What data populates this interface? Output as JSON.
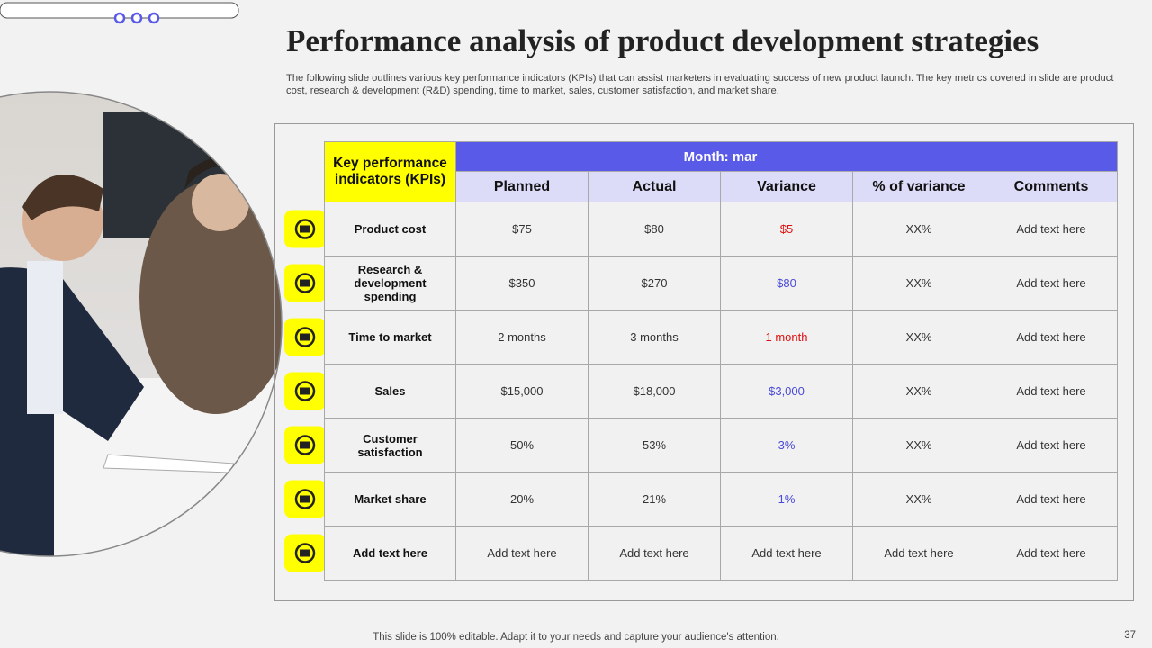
{
  "title": "Performance analysis of product development strategies",
  "subtitle": "The following slide outlines various key performance indicators (KPIs) that can assist marketers in evaluating success of new product launch. The key metrics covered in slide are product cost, research & development (R&D) spending, time to market, sales, customer satisfaction, and market share.",
  "table": {
    "kpi_header": "Key performance indicators (KPIs)",
    "group_header": "Month: mar",
    "columns": [
      "Planned",
      "Actual",
      "Variance",
      "% of variance",
      "Comments"
    ],
    "rows": [
      [
        "Product cost",
        "$75",
        "$80",
        "$5",
        "XX%",
        "Add text here"
      ],
      [
        "Research & development spending",
        "$350",
        "$270",
        "$80",
        "XX%",
        "Add text here"
      ],
      [
        "Time to market",
        "2 months",
        "3 months",
        "1 month",
        "XX%",
        "Add text here"
      ],
      [
        "Sales",
        "$15,000",
        "$18,000",
        "$3,000",
        "XX%",
        "Add text here"
      ],
      [
        "Customer satisfaction",
        "50%",
        "53%",
        "3%",
        "XX%",
        "Add text here"
      ],
      [
        "Market share",
        "20%",
        "21%",
        "1%",
        "XX%",
        "Add text here"
      ],
      [
        "Add text here",
        "Add text here",
        "Add text here",
        "Add text here",
        "Add text here",
        "Add text here"
      ]
    ],
    "variance_colors": [
      "#e01010",
      "#4a4ad8",
      "#e01010",
      "#4a4ad8",
      "#4a4ad8",
      "#4a4ad8",
      "#333333"
    ]
  },
  "footer": "This slide is 100% editable. Adapt it to your needs and capture your audience's attention.",
  "page_number": "37"
}
